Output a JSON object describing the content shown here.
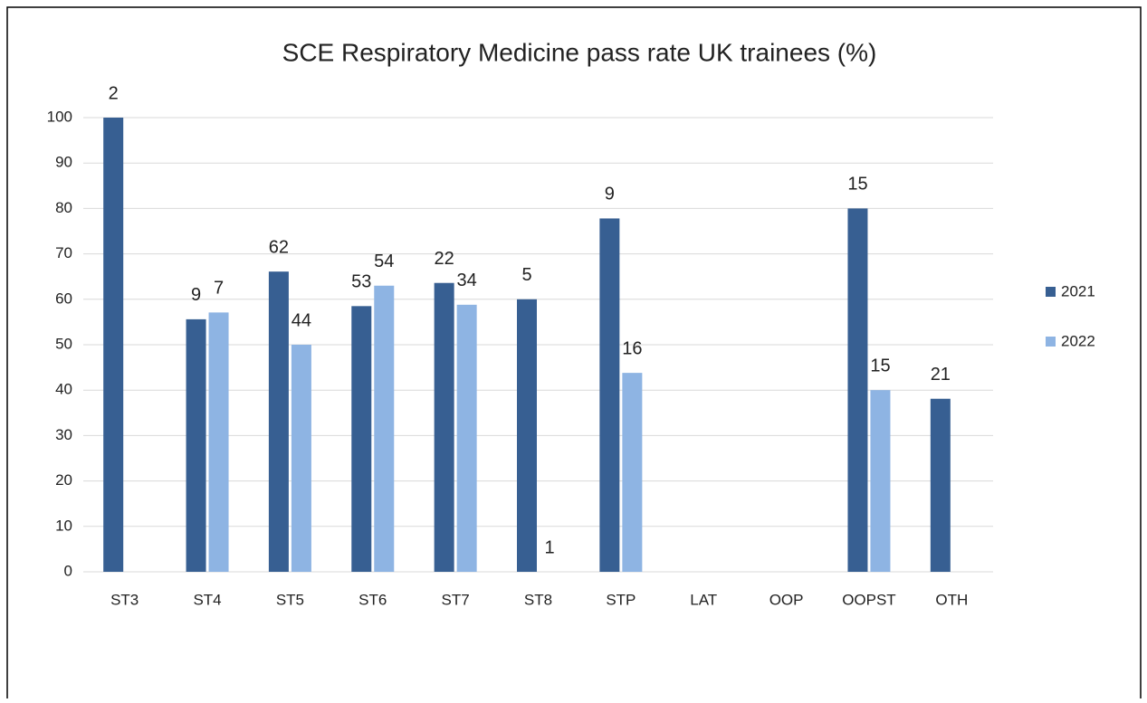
{
  "chart_data": {
    "type": "bar",
    "title": "SCE Respiratory Medicine pass rate UK trainees (%)",
    "categories": [
      "ST3",
      "ST4",
      "ST5",
      "ST6",
      "ST7",
      "ST8",
      "STP",
      "LAT",
      "OOP",
      "OOPST",
      "OTH"
    ],
    "series": [
      {
        "name": "2021",
        "color": "#375f92",
        "values": [
          100,
          55.6,
          66.1,
          58.5,
          63.6,
          60,
          77.8,
          null,
          null,
          80,
          38.1
        ],
        "annotations": [
          2,
          9,
          62,
          53,
          22,
          5,
          9,
          null,
          null,
          15,
          21
        ]
      },
      {
        "name": "2022",
        "color": "#8eb4e3",
        "values": [
          null,
          57.1,
          50,
          63,
          58.8,
          0,
          43.8,
          null,
          null,
          40,
          null
        ],
        "annotations": [
          null,
          7,
          44,
          54,
          34,
          1,
          16,
          null,
          null,
          15,
          null
        ]
      }
    ],
    "ylim": [
      0,
      100
    ],
    "yticks": [
      0,
      10,
      20,
      30,
      40,
      50,
      60,
      70,
      80,
      90,
      100
    ],
    "grid": true,
    "legend": "right"
  }
}
